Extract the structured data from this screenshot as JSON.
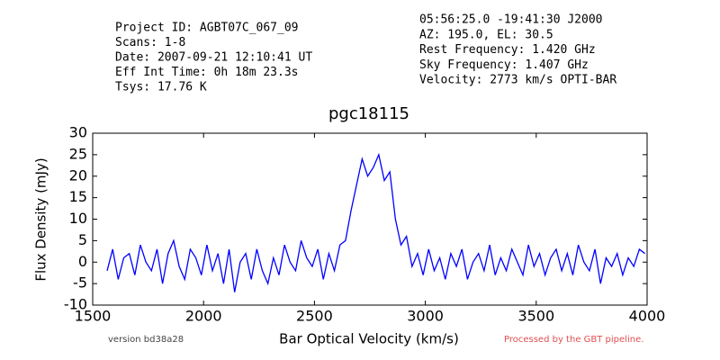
{
  "chart_data": {
    "type": "line",
    "title": "pgc18115",
    "xlabel": "Bar Optical Velocity (km/s)",
    "ylabel": "Flux Density (mJy)",
    "header_left": [
      "Project ID: AGBT07C_067_09",
      "Scans: 1-8",
      "Date: 2007-09-21 12:10:41 UT",
      "Eff Int Time: 0h 18m 23.3s",
      "Tsys: 17.76 K"
    ],
    "header_right": [
      "05:56:25.0 -19:41:30 J2000",
      "AZ: 195.0, EL: 30.5",
      "Rest Frequency:   1.420 GHz",
      "Sky Frequency:    1.407 GHz",
      "Velocity: 2773 km/s OPTI-BAR"
    ],
    "footer_left": "version bd38a28",
    "footer_right": "Processed by the GBT pipeline.",
    "color": "#0000ff",
    "xlim": [
      1500,
      4000
    ],
    "ylim": [
      -10,
      30
    ],
    "xticks": [
      1500,
      2000,
      2500,
      3000,
      3500,
      4000
    ],
    "yticks": [
      -10,
      -5,
      0,
      5,
      10,
      15,
      20,
      25,
      30
    ],
    "grid": false,
    "x": [
      1565,
      1590,
      1615,
      1640,
      1665,
      1690,
      1715,
      1740,
      1765,
      1790,
      1815,
      1840,
      1865,
      1890,
      1915,
      1940,
      1965,
      1990,
      2015,
      2040,
      2065,
      2090,
      2115,
      2140,
      2165,
      2190,
      2215,
      2240,
      2265,
      2290,
      2315,
      2340,
      2365,
      2390,
      2415,
      2440,
      2465,
      2490,
      2515,
      2540,
      2565,
      2590,
      2615,
      2640,
      2665,
      2690,
      2715,
      2740,
      2765,
      2790,
      2815,
      2840,
      2865,
      2890,
      2915,
      2940,
      2965,
      2990,
      3015,
      3040,
      3065,
      3090,
      3115,
      3140,
      3165,
      3190,
      3215,
      3240,
      3265,
      3290,
      3315,
      3340,
      3365,
      3390,
      3415,
      3440,
      3465,
      3490,
      3515,
      3540,
      3565,
      3590,
      3615,
      3640,
      3665,
      3690,
      3715,
      3740,
      3765,
      3790,
      3815,
      3840,
      3865,
      3890,
      3915,
      3940,
      3965,
      3990
    ],
    "values": [
      -2,
      3,
      -4,
      1,
      2,
      -3,
      4,
      0,
      -2,
      3,
      -5,
      2,
      5,
      -1,
      -4,
      3,
      1,
      -3,
      4,
      -2,
      2,
      -5,
      3,
      -7,
      0,
      2,
      -4,
      3,
      -2,
      -5,
      1,
      -3,
      4,
      0,
      -2,
      5,
      1,
      -1,
      3,
      -4,
      2,
      -2,
      4,
      5,
      12,
      18,
      24,
      20,
      22,
      25,
      19,
      21,
      10,
      4,
      6,
      -1,
      2,
      -3,
      3,
      -2,
      1,
      -4,
      2,
      -1,
      3,
      -4,
      0,
      2,
      -2,
      4,
      -3,
      1,
      -2,
      3,
      0,
      -3,
      4,
      -1,
      2,
      -3,
      1,
      3,
      -2,
      2,
      -3,
      4,
      0,
      -2,
      3,
      -5,
      1,
      -1,
      2,
      -3,
      1,
      -1,
      3,
      2
    ]
  }
}
